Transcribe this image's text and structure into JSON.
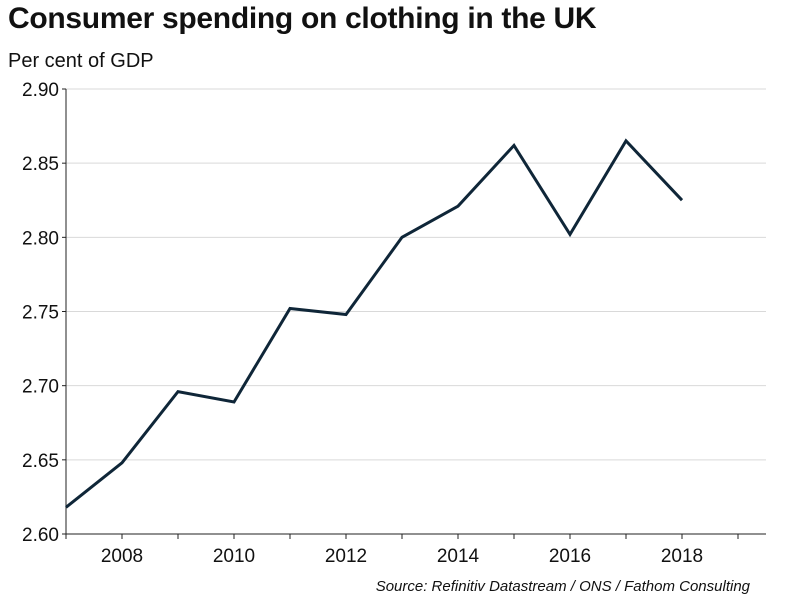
{
  "chart_data": {
    "type": "line",
    "title": "Consumer spending on clothing in the UK",
    "subtitle": "Per cent of GDP",
    "source": "Source: Refinitiv Datastream / ONS / Fathom Consulting",
    "xlabel": "",
    "ylabel": "",
    "xlim": [
      2007,
      2019.5
    ],
    "ylim": [
      2.6,
      2.9
    ],
    "x_ticks": [
      2008,
      2010,
      2012,
      2014,
      2016,
      2018
    ],
    "y_ticks": [
      "2.60",
      "2.65",
      "2.70",
      "2.75",
      "2.80",
      "2.85",
      "2.90"
    ],
    "grid": true,
    "series": [
      {
        "x": [
          2007,
          2008,
          2009,
          2010,
          2011,
          2012,
          2013,
          2014,
          2015,
          2016,
          2017,
          2018
        ],
        "values": [
          2.618,
          2.648,
          2.696,
          2.689,
          2.752,
          2.748,
          2.8,
          2.821,
          2.862,
          2.802,
          2.865,
          2.825
        ],
        "color": "#0f2638"
      }
    ],
    "colors": {
      "grid": "#d9d9d9",
      "axis": "#222222"
    }
  }
}
